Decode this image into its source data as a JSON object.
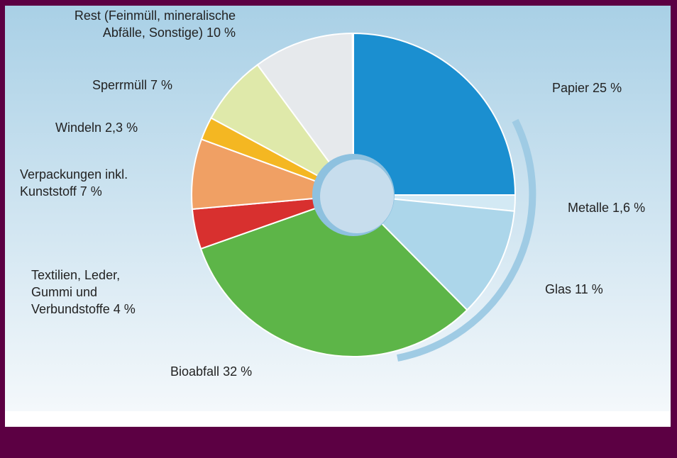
{
  "chart_data": {
    "type": "pie",
    "categories": [
      [
        "Papier"
      ],
      [
        "Metalle"
      ],
      [
        "Glas"
      ],
      [
        "Bioabfall"
      ],
      [
        "Textilien, Leder,",
        "Gummi und",
        "Verbundstoffe"
      ],
      [
        "Verpackungen inkl.",
        "Kunststoff"
      ],
      [
        "Windeln"
      ],
      [
        "Sperrmüll"
      ],
      [
        "Rest (Feinmüll, mineralische",
        "Abfälle, Sonstige)"
      ]
    ],
    "values": [
      25,
      1.6,
      11,
      32,
      4,
      7,
      2.3,
      7,
      10
    ],
    "value_labels": [
      "25 %",
      "1,6 %",
      "11 %",
      "32 %",
      "4 %",
      "7 %",
      "2,3 %",
      "7 %",
      "10 %"
    ],
    "colors": [
      "#1b8fd0",
      "#d3e9f4",
      "#acd6ea",
      "#5db548",
      "#d8302f",
      "#f0a064",
      "#f4b722",
      "#dfe9aa",
      "#e6e9ec"
    ]
  }
}
